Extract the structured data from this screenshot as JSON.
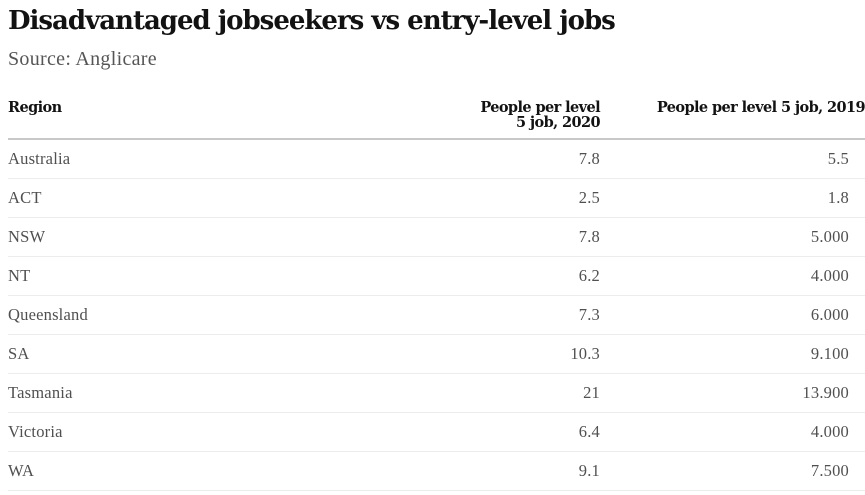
{
  "header": {
    "title": "Disadvantaged jobseekers vs entry-level jobs",
    "source": "Source: Anglicare"
  },
  "chart_data": {
    "type": "table",
    "title": "Disadvantaged jobseekers vs entry-level jobs",
    "subtitle": "Source: Anglicare",
    "columns": [
      "Region",
      "People per level 5 job, 2020",
      "People per level 5 job, 2019"
    ],
    "rows": [
      [
        "Australia",
        "7.8",
        "5.5"
      ],
      [
        "ACT",
        "2.5",
        "1.8"
      ],
      [
        "NSW",
        "7.8",
        "5.000"
      ],
      [
        "NT",
        "6.2",
        "4.000"
      ],
      [
        "Queensland",
        "7.3",
        "6.000"
      ],
      [
        "SA",
        "10.3",
        "9.100"
      ],
      [
        "Tasmania",
        "21",
        "13.900"
      ],
      [
        "Victoria",
        "6.4",
        "4.000"
      ],
      [
        "WA",
        "9.1",
        "7.500"
      ]
    ]
  }
}
